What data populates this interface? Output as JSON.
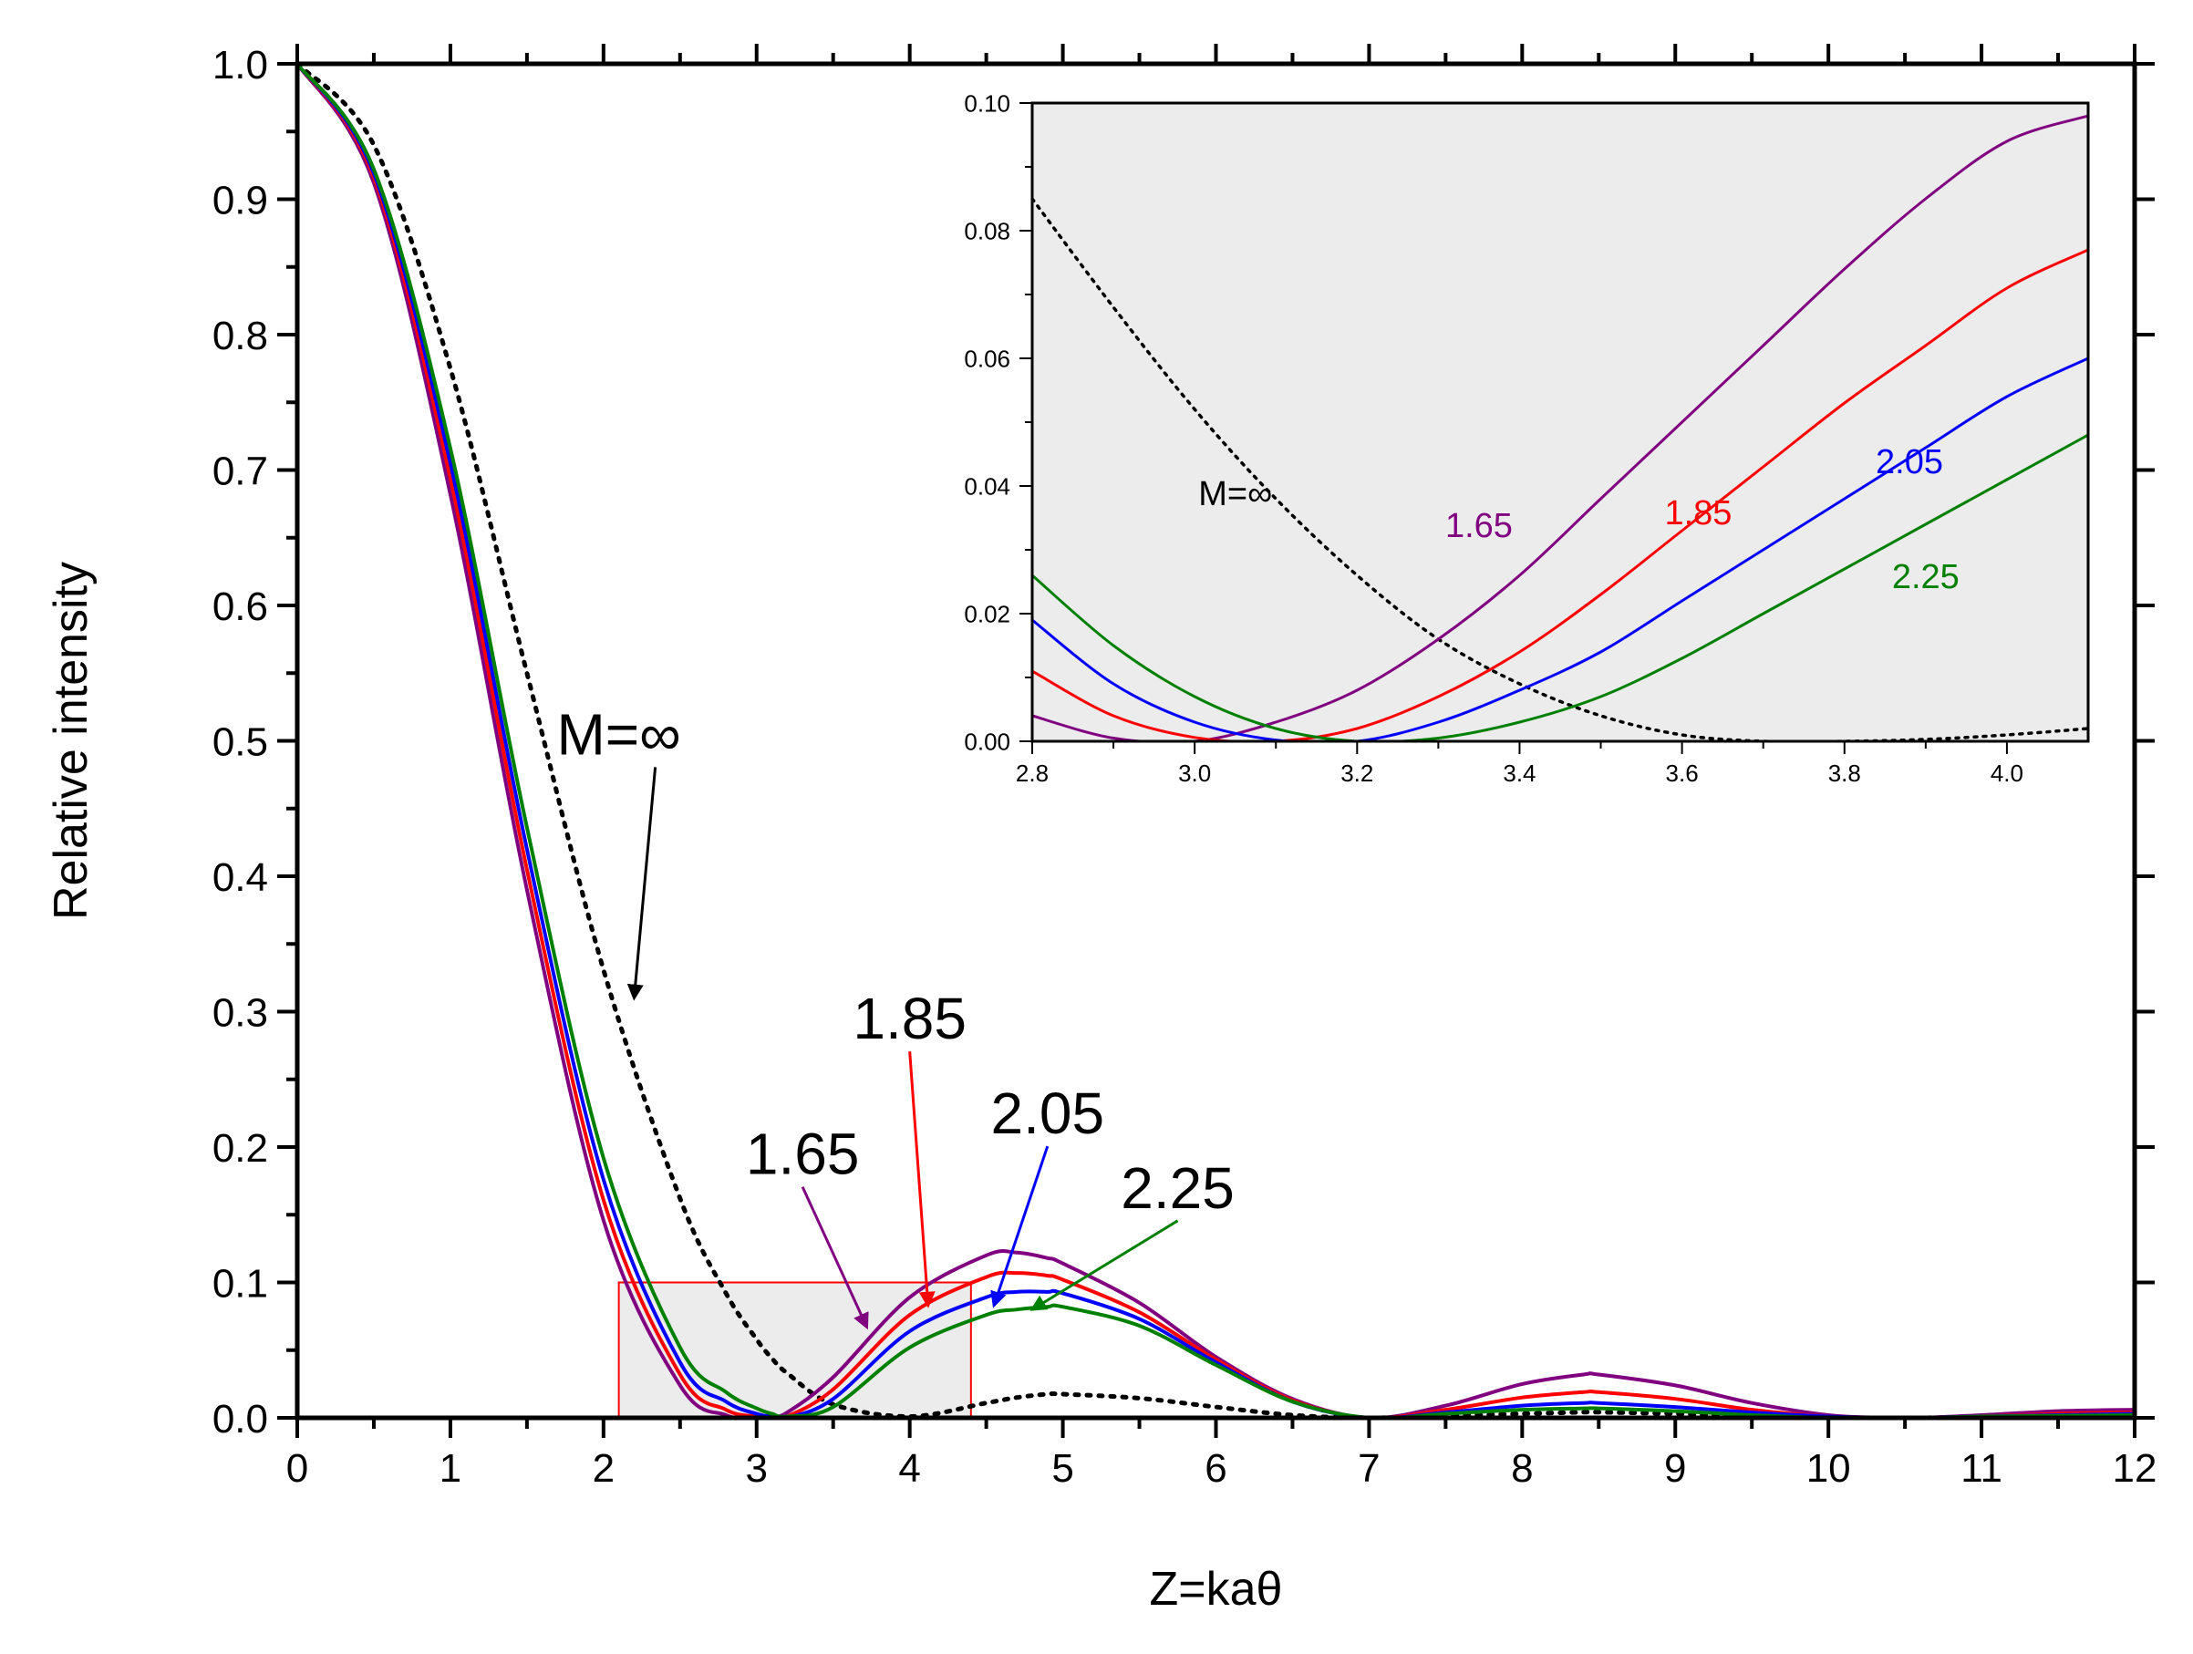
{
  "chart_data": [
    {
      "id": "main",
      "type": "line",
      "title": "",
      "xlabel": "Z=kaθ",
      "ylabel": "Relative intensity",
      "xlim": [
        0,
        12
      ],
      "ylim": [
        0,
        1
      ],
      "xticks": [
        0,
        1,
        2,
        3,
        4,
        5,
        6,
        7,
        8,
        9,
        10,
        11,
        12
      ],
      "xtick_labels": [
        "0",
        "1",
        "2",
        "3",
        "4",
        "5",
        "6",
        "7",
        "8",
        "9",
        "10",
        "11",
        "12"
      ],
      "yticks": [
        0,
        0.1,
        0.2,
        0.3,
        0.4,
        0.5,
        0.6,
        0.7,
        0.8,
        0.9,
        1.0
      ],
      "ytick_labels": [
        "0.0",
        "0.1",
        "0.2",
        "0.3",
        "0.4",
        "0.5",
        "0.6",
        "0.7",
        "0.8",
        "0.9",
        "1.0"
      ],
      "grid": false,
      "x": [
        0,
        0.5,
        1.0,
        1.5,
        2.0,
        2.5,
        2.8,
        3.0,
        3.1,
        3.2,
        3.5,
        4.0,
        4.5,
        4.7,
        4.9,
        5.0,
        5.5,
        6.0,
        6.5,
        7.0,
        7.5,
        8.0,
        8.4,
        8.5,
        9.0,
        9.5,
        10.0,
        10.4,
        10.6,
        11.0,
        11.5,
        12.0
      ],
      "series": [
        {
          "name": "M=∞",
          "color": "#000000",
          "dash": "dotted",
          "values": [
            1.0,
            0.94,
            0.775,
            0.55,
            0.331,
            0.162,
            0.092,
            0.058,
            0.044,
            0.033,
            0.01,
            0.001,
            0.011,
            0.015,
            0.0175,
            0.0175,
            0.0145,
            0.008,
            0.002,
            0.0,
            0.0015,
            0.003,
            0.0042,
            0.0042,
            0.003,
            0.0013,
            0.0001,
            0.0,
            0.0,
            0.0006,
            0.0015,
            0.0018
          ]
        },
        {
          "name": "1.65",
          "color": "#800080",
          "values": [
            1.0,
            0.912,
            0.682,
            0.39,
            0.146,
            0.024,
            0.002,
            0.0,
            0.001,
            0.004,
            0.03,
            0.089,
            0.12,
            0.122,
            0.118,
            0.114,
            0.085,
            0.045,
            0.014,
            0.0,
            0.009,
            0.025,
            0.032,
            0.032,
            0.024,
            0.011,
            0.002,
            0.0,
            0.0,
            0.002,
            0.005,
            0.006
          ]
        },
        {
          "name": "1.85",
          "color": "#ff0000",
          "values": [
            1.0,
            0.916,
            0.694,
            0.405,
            0.161,
            0.032,
            0.006,
            0.001,
            0.0,
            0.001,
            0.021,
            0.076,
            0.104,
            0.107,
            0.105,
            0.102,
            0.078,
            0.043,
            0.013,
            0.0,
            0.006,
            0.015,
            0.019,
            0.019,
            0.014,
            0.006,
            0.001,
            0.0,
            0.0,
            0.001,
            0.003,
            0.004
          ]
        },
        {
          "name": "2.05",
          "color": "#0000ff",
          "values": [
            1.0,
            0.919,
            0.705,
            0.42,
            0.176,
            0.041,
            0.012,
            0.003,
            0.001,
            0.0,
            0.014,
            0.064,
            0.089,
            0.093,
            0.093,
            0.092,
            0.073,
            0.041,
            0.012,
            0.0,
            0.004,
            0.009,
            0.011,
            0.011,
            0.008,
            0.004,
            0.001,
            0.0,
            0.0,
            0.001,
            0.002,
            0.003
          ]
        },
        {
          "name": "2.25",
          "color": "#008000",
          "values": [
            1.0,
            0.922,
            0.716,
            0.436,
            0.192,
            0.052,
            0.019,
            0.007,
            0.003,
            0.001,
            0.008,
            0.052,
            0.076,
            0.08,
            0.082,
            0.082,
            0.068,
            0.039,
            0.012,
            0.0,
            0.003,
            0.006,
            0.007,
            0.007,
            0.005,
            0.002,
            0.0,
            0.0,
            0.0,
            0.001,
            0.0015,
            0.002
          ]
        }
      ],
      "zoom_box": {
        "x": [
          2.1,
          4.4
        ],
        "y": [
          0,
          0.1
        ],
        "color": "#ff0000"
      },
      "annotations": [
        {
          "text": "M=∞",
          "color": "#000000",
          "at": [
            2.2,
            0.31
          ],
          "label_at": [
            2.1,
            0.49
          ]
        },
        {
          "text": "1.65",
          "color": "#000000",
          "arrow_color": "#800080",
          "at": [
            3.72,
            0.067
          ],
          "label_at": [
            3.3,
            0.18
          ]
        },
        {
          "text": "1.85",
          "color": "#000000",
          "arrow_color": "#ff0000",
          "at": [
            4.12,
            0.083
          ],
          "label_at": [
            4.0,
            0.28
          ]
        },
        {
          "text": "2.05",
          "color": "#000000",
          "arrow_color": "#0000ff",
          "at": [
            4.55,
            0.083
          ],
          "label_at": [
            4.9,
            0.21
          ]
        },
        {
          "text": "2.25",
          "color": "#000000",
          "arrow_color": "#008000",
          "at": [
            4.8,
            0.08
          ],
          "label_at": [
            5.75,
            0.155
          ]
        }
      ]
    },
    {
      "id": "inset",
      "type": "line",
      "title": "",
      "xlabel": "",
      "ylabel": "",
      "xlim": [
        2.8,
        4.1
      ],
      "ylim": [
        0,
        0.1
      ],
      "xticks": [
        2.8,
        3.0,
        3.2,
        3.4,
        3.6,
        3.8,
        4.0
      ],
      "xtick_labels": [
        "2.8",
        "3.0",
        "3.2",
        "3.4",
        "3.6",
        "3.8",
        "4.0"
      ],
      "yticks": [
        0,
        0.02,
        0.04,
        0.06,
        0.08,
        0.1
      ],
      "ytick_labels": [
        "0.00",
        "0.02",
        "0.04",
        "0.06",
        "0.08",
        "0.10"
      ],
      "background": "#ececec",
      "x": [
        2.8,
        2.9,
        3.0,
        3.1,
        3.2,
        3.3,
        3.4,
        3.5,
        3.6,
        3.7,
        3.8,
        3.9,
        4.0,
        4.1
      ],
      "series": [
        {
          "name": "M=∞",
          "color": "#000000",
          "dash": "dotted",
          "values": [
            0.085,
            0.068,
            0.052,
            0.038,
            0.026,
            0.016,
            0.009,
            0.004,
            0.001,
            0.0,
            0.0,
            0.0003,
            0.001,
            0.002
          ]
        },
        {
          "name": "1.65",
          "color": "#800080",
          "values": [
            0.004,
            0.0005,
            0.0,
            0.003,
            0.008,
            0.016,
            0.026,
            0.038,
            0.05,
            0.062,
            0.074,
            0.085,
            0.094,
            0.098
          ]
        },
        {
          "name": "1.85",
          "color": "#ff0000",
          "values": [
            0.011,
            0.004,
            0.0006,
            0.0,
            0.002,
            0.007,
            0.014,
            0.023,
            0.033,
            0.043,
            0.053,
            0.062,
            0.071,
            0.077
          ]
        },
        {
          "name": "2.05",
          "color": "#0000ff",
          "values": [
            0.019,
            0.009,
            0.003,
            0.0002,
            0.0,
            0.003,
            0.008,
            0.014,
            0.022,
            0.03,
            0.038,
            0.046,
            0.054,
            0.06
          ]
        },
        {
          "name": "2.25",
          "color": "#008000",
          "values": [
            0.026,
            0.015,
            0.007,
            0.002,
            0.0,
            0.0005,
            0.003,
            0.007,
            0.013,
            0.02,
            0.027,
            0.034,
            0.041,
            0.048
          ]
        }
      ],
      "labels": [
        {
          "text": "M=∞",
          "color": "#000000",
          "at": [
            3.05,
            0.037
          ]
        },
        {
          "text": "1.65",
          "color": "#800080",
          "at": [
            3.35,
            0.032
          ]
        },
        {
          "text": "1.85",
          "color": "#ff0000",
          "at": [
            3.62,
            0.034
          ]
        },
        {
          "text": "2.05",
          "color": "#0000ff",
          "at": [
            3.88,
            0.042
          ]
        },
        {
          "text": "2.25",
          "color": "#008000",
          "at": [
            3.9,
            0.024
          ]
        }
      ]
    }
  ]
}
